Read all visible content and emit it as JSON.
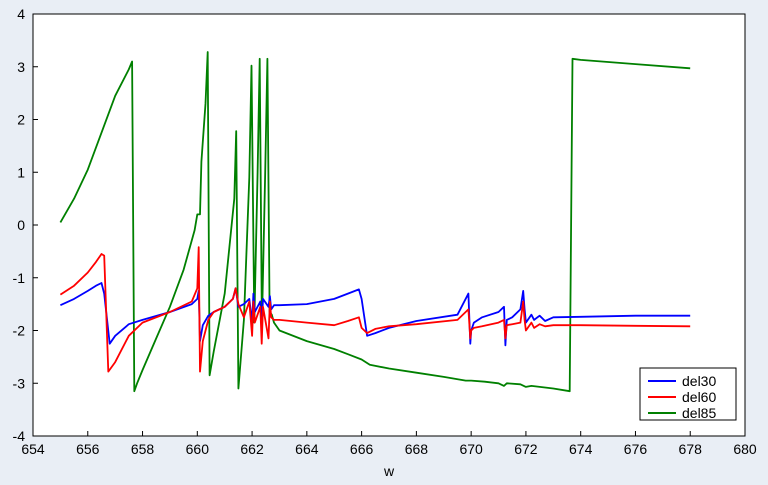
{
  "chart_data": {
    "type": "line",
    "title": "",
    "xlabel": "w",
    "ylabel": "",
    "xlim": [
      654,
      680
    ],
    "ylim": [
      -4,
      4
    ],
    "xticks": [
      654,
      656,
      658,
      660,
      662,
      664,
      666,
      668,
      670,
      672,
      674,
      676,
      678,
      680
    ],
    "yticks": [
      -4,
      -3,
      -2,
      -1,
      0,
      1,
      2,
      3,
      4
    ],
    "grid": false,
    "legend_position": "bottom-right",
    "series": [
      {
        "name": "del30",
        "color": "#0000ff",
        "x": [
          655.0,
          655.5,
          656.0,
          656.3,
          656.5,
          656.6,
          656.8,
          657.0,
          657.5,
          658.0,
          659.0,
          659.8,
          660.0,
          660.05,
          660.1,
          660.2,
          660.4,
          660.6,
          661.0,
          661.3,
          661.4,
          661.5,
          661.7,
          661.9,
          662.0,
          662.05,
          662.1,
          662.3,
          662.35,
          662.4,
          662.6,
          662.65,
          662.7,
          662.8,
          663.0,
          664.0,
          665.0,
          665.5,
          665.9,
          666.0,
          666.2,
          666.5,
          667.0,
          668.0,
          669.5,
          669.9,
          669.97,
          670.0,
          670.1,
          670.4,
          671.0,
          671.2,
          671.25,
          671.3,
          671.5,
          671.8,
          671.9,
          671.95,
          672.0,
          672.2,
          672.3,
          672.5,
          672.7,
          673.0,
          674.0,
          676.0,
          678.0
        ],
        "y": [
          -1.52,
          -1.4,
          -1.25,
          -1.15,
          -1.1,
          -1.3,
          -2.25,
          -2.1,
          -1.88,
          -1.8,
          -1.65,
          -1.5,
          -1.4,
          -1.25,
          -2.2,
          -1.9,
          -1.72,
          -1.65,
          -1.55,
          -1.4,
          -1.2,
          -1.55,
          -1.5,
          -1.4,
          -1.85,
          -1.3,
          -1.65,
          -1.45,
          -1.9,
          -1.4,
          -1.55,
          -1.35,
          -1.6,
          -1.52,
          -1.52,
          -1.5,
          -1.4,
          -1.3,
          -1.22,
          -1.4,
          -2.1,
          -2.05,
          -1.95,
          -1.82,
          -1.7,
          -1.3,
          -2.25,
          -2.0,
          -1.85,
          -1.75,
          -1.65,
          -1.55,
          -2.28,
          -1.8,
          -1.75,
          -1.6,
          -1.25,
          -1.6,
          -1.85,
          -1.7,
          -1.8,
          -1.72,
          -1.82,
          -1.75,
          -1.74,
          -1.72,
          -1.72
        ]
      },
      {
        "name": "del60",
        "color": "#ff0000",
        "x": [
          655.0,
          655.5,
          656.0,
          656.3,
          656.5,
          656.6,
          656.75,
          657.0,
          657.5,
          658.0,
          659.0,
          659.8,
          660.0,
          660.05,
          660.1,
          660.2,
          660.4,
          660.6,
          661.0,
          661.3,
          661.4,
          661.5,
          661.7,
          661.9,
          662.0,
          662.05,
          662.1,
          662.3,
          662.35,
          662.4,
          662.6,
          662.65,
          662.7,
          662.8,
          663.0,
          664.0,
          665.0,
          665.5,
          665.9,
          666.0,
          666.2,
          666.5,
          667.0,
          668.0,
          669.5,
          669.9,
          669.97,
          670.0,
          670.1,
          670.4,
          671.0,
          671.2,
          671.25,
          671.3,
          671.5,
          671.8,
          671.9,
          671.95,
          672.0,
          672.2,
          672.3,
          672.5,
          672.7,
          673.0,
          674.0,
          676.0,
          678.0
        ],
        "y": [
          -1.32,
          -1.15,
          -0.9,
          -0.7,
          -0.55,
          -0.58,
          -2.78,
          -2.6,
          -2.1,
          -1.85,
          -1.65,
          -1.45,
          -1.2,
          -0.42,
          -2.78,
          -2.2,
          -1.8,
          -1.65,
          -1.55,
          -1.4,
          -1.2,
          -1.5,
          -1.75,
          -1.45,
          -2.1,
          -1.45,
          -1.85,
          -1.55,
          -2.25,
          -1.55,
          -2.15,
          -1.45,
          -1.75,
          -1.8,
          -1.8,
          -1.85,
          -1.9,
          -1.82,
          -1.75,
          -1.95,
          -2.05,
          -1.97,
          -1.92,
          -1.88,
          -1.8,
          -1.6,
          -2.15,
          -2.0,
          -1.95,
          -1.92,
          -1.85,
          -1.8,
          -2.15,
          -1.9,
          -1.88,
          -1.85,
          -1.45,
          -1.8,
          -2.0,
          -1.85,
          -1.95,
          -1.88,
          -1.92,
          -1.9,
          -1.9,
          -1.91,
          -1.92
        ]
      },
      {
        "name": "del85",
        "color": "#008000",
        "x": [
          655.0,
          655.5,
          656.0,
          656.5,
          657.0,
          657.5,
          657.62,
          657.7,
          657.8,
          658.0,
          658.5,
          659.0,
          659.5,
          659.9,
          660.0,
          660.1,
          660.15,
          660.3,
          660.38,
          660.45,
          660.6,
          661.0,
          661.35,
          661.42,
          661.5,
          661.7,
          661.9,
          661.98,
          662.08,
          662.2,
          662.28,
          662.36,
          662.48,
          662.56,
          662.64,
          662.72,
          662.8,
          663.0,
          664.0,
          665.0,
          665.5,
          666.0,
          666.3,
          667.0,
          668.0,
          669.0,
          669.8,
          670.0,
          670.5,
          671.0,
          671.2,
          671.3,
          671.8,
          672.0,
          672.2,
          673.0,
          673.6,
          673.7,
          674.0,
          676.0,
          678.0
        ],
        "y": [
          0.05,
          0.5,
          1.05,
          1.75,
          2.45,
          2.95,
          3.1,
          -3.15,
          -3.0,
          -2.75,
          -2.15,
          -1.55,
          -0.85,
          -0.1,
          0.2,
          0.2,
          1.2,
          2.3,
          3.28,
          -2.85,
          -2.4,
          -1.3,
          0.5,
          1.78,
          -3.1,
          -1.8,
          0.9,
          3.02,
          -1.85,
          1.0,
          3.15,
          -1.9,
          1.0,
          3.15,
          -1.65,
          -1.7,
          -1.85,
          -2.0,
          -2.2,
          -2.35,
          -2.45,
          -2.55,
          -2.65,
          -2.72,
          -2.8,
          -2.88,
          -2.95,
          -2.95,
          -2.97,
          -3.0,
          -3.05,
          -3.0,
          -3.02,
          -3.07,
          -3.05,
          -3.1,
          -3.15,
          3.15,
          3.13,
          3.05,
          2.97
        ]
      }
    ]
  }
}
